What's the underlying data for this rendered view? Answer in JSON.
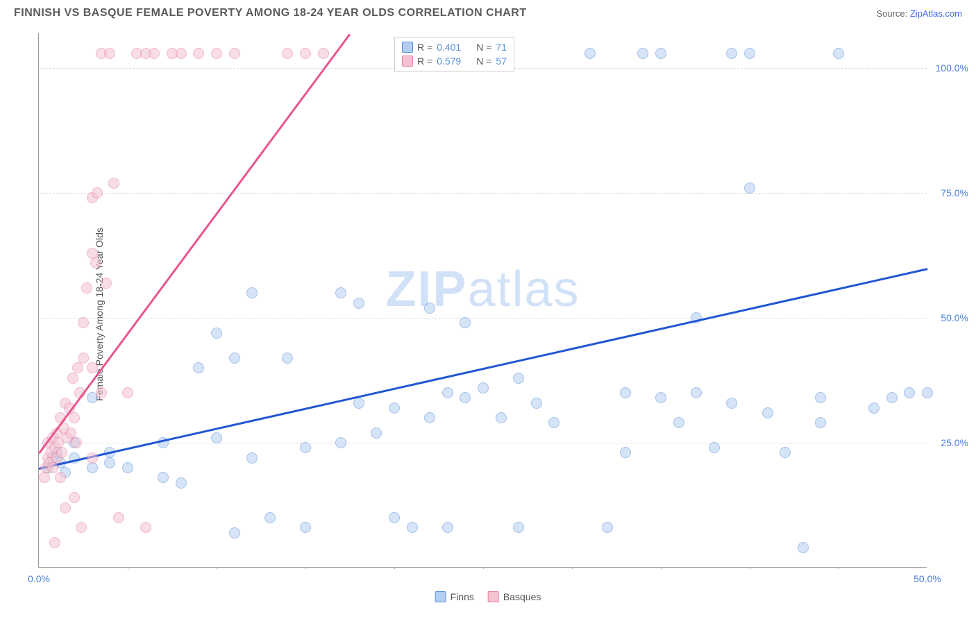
{
  "header": {
    "title": "FINNISH VS BASQUE FEMALE POVERTY AMONG 18-24 YEAR OLDS CORRELATION CHART",
    "source_prefix": "Source: ",
    "source_link": "ZipAtlas.com"
  },
  "ylabel": "Female Poverty Among 18-24 Year Olds",
  "watermark_bold": "ZIP",
  "watermark_light": "atlas",
  "chart": {
    "type": "scatter",
    "xlim": [
      0,
      50
    ],
    "ylim": [
      0,
      107
    ],
    "x_ticks": [
      0,
      50
    ],
    "x_tick_labels": [
      "0.0%",
      "50.0%"
    ],
    "x_minor_ticks": [
      5,
      10,
      15,
      20,
      25,
      30,
      35,
      40,
      45
    ],
    "y_ticks": [
      25,
      50,
      75,
      100
    ],
    "y_tick_labels": [
      "25.0%",
      "50.0%",
      "75.0%",
      "100.0%"
    ],
    "grid_dash_color": "#dddddd",
    "axis_color": "#999999",
    "background_color": "#ffffff",
    "marker_radius": 8,
    "marker_stroke_width": 1,
    "series": [
      {
        "name": "Finns",
        "fill": "#b3cef2",
        "stroke": "#5b8fd9",
        "fill_opacity": 0.55,
        "R": "0.401",
        "N": "71",
        "trend": {
          "x1": 0,
          "y1": 20,
          "x2": 50,
          "y2": 60,
          "color": "#2156d4",
          "width": 2.5
        },
        "points": [
          [
            0.5,
            20
          ],
          [
            0.8,
            22
          ],
          [
            1,
            23
          ],
          [
            1.2,
            21
          ],
          [
            1.5,
            19
          ],
          [
            2,
            25
          ],
          [
            2,
            22
          ],
          [
            3,
            20
          ],
          [
            3,
            34
          ],
          [
            4,
            21
          ],
          [
            4,
            23
          ],
          [
            5,
            20
          ],
          [
            7,
            18
          ],
          [
            7,
            25
          ],
          [
            8,
            17
          ],
          [
            9,
            40
          ],
          [
            10,
            26
          ],
          [
            10,
            47
          ],
          [
            11,
            7
          ],
          [
            11,
            42
          ],
          [
            12,
            22
          ],
          [
            12,
            55
          ],
          [
            13,
            10
          ],
          [
            14,
            42
          ],
          [
            15,
            24
          ],
          [
            15,
            8
          ],
          [
            17,
            55
          ],
          [
            17,
            25
          ],
          [
            18,
            33
          ],
          [
            18,
            53
          ],
          [
            19,
            27
          ],
          [
            20,
            10
          ],
          [
            20,
            32
          ],
          [
            21,
            8
          ],
          [
            22,
            30
          ],
          [
            22,
            52
          ],
          [
            23,
            8
          ],
          [
            23,
            35
          ],
          [
            24,
            34
          ],
          [
            24,
            49
          ],
          [
            25,
            36
          ],
          [
            26,
            30
          ],
          [
            27,
            38
          ],
          [
            27,
            8
          ],
          [
            28,
            33
          ],
          [
            29,
            29
          ],
          [
            31,
            103
          ],
          [
            32,
            8
          ],
          [
            33,
            35
          ],
          [
            33,
            23
          ],
          [
            34,
            103
          ],
          [
            35,
            34
          ],
          [
            35,
            103
          ],
          [
            36,
            29
          ],
          [
            37,
            35
          ],
          [
            37,
            50
          ],
          [
            38,
            24
          ],
          [
            39,
            33
          ],
          [
            39,
            103
          ],
          [
            40,
            76
          ],
          [
            40,
            103
          ],
          [
            41,
            31
          ],
          [
            42,
            23
          ],
          [
            43,
            4
          ],
          [
            44,
            29
          ],
          [
            44,
            34
          ],
          [
            45,
            103
          ],
          [
            47,
            32
          ],
          [
            48,
            34
          ],
          [
            49,
            35
          ],
          [
            50,
            35
          ]
        ]
      },
      {
        "name": "Basques",
        "fill": "#f4c2d0",
        "stroke": "#e87fa5",
        "fill_opacity": 0.55,
        "R": "0.579",
        "N": "57",
        "trend": {
          "x1": 0,
          "y1": 23,
          "x2": 17.5,
          "y2": 107,
          "color": "#e85590",
          "width": 2.5
        },
        "points": [
          [
            0.3,
            18
          ],
          [
            0.4,
            20
          ],
          [
            0.5,
            22
          ],
          [
            0.5,
            25
          ],
          [
            0.6,
            21
          ],
          [
            0.7,
            23
          ],
          [
            0.8,
            20
          ],
          [
            0.8,
            26
          ],
          [
            0.9,
            24
          ],
          [
            0.9,
            5
          ],
          [
            1,
            22
          ],
          [
            1,
            27
          ],
          [
            1.1,
            25
          ],
          [
            1.2,
            30
          ],
          [
            1.2,
            18
          ],
          [
            1.3,
            23
          ],
          [
            1.4,
            28
          ],
          [
            1.5,
            33
          ],
          [
            1.5,
            12
          ],
          [
            1.6,
            26
          ],
          [
            1.7,
            32
          ],
          [
            1.8,
            27
          ],
          [
            1.9,
            38
          ],
          [
            2,
            30
          ],
          [
            2,
            14
          ],
          [
            2.1,
            25
          ],
          [
            2.2,
            40
          ],
          [
            2.3,
            35
          ],
          [
            2.4,
            8
          ],
          [
            2.5,
            42
          ],
          [
            2.5,
            49
          ],
          [
            2.7,
            56
          ],
          [
            3,
            40
          ],
          [
            3,
            63
          ],
          [
            3,
            74
          ],
          [
            3.2,
            61
          ],
          [
            3.3,
            75
          ],
          [
            3.5,
            103
          ],
          [
            3.5,
            35
          ],
          [
            3.8,
            57
          ],
          [
            4,
            103
          ],
          [
            4.2,
            77
          ],
          [
            4.5,
            10
          ],
          [
            5,
            35
          ],
          [
            5.5,
            103
          ],
          [
            6,
            103
          ],
          [
            6,
            8
          ],
          [
            6.5,
            103
          ],
          [
            7.5,
            103
          ],
          [
            8,
            103
          ],
          [
            9,
            103
          ],
          [
            10,
            103
          ],
          [
            11,
            103
          ],
          [
            14,
            103
          ],
          [
            15,
            103
          ],
          [
            16,
            103
          ],
          [
            3,
            22
          ]
        ]
      }
    ]
  },
  "stats_legend": {
    "r_label": "R =",
    "n_label": "N ="
  },
  "bottom_legend": {
    "items": [
      "Finns",
      "Basques"
    ]
  }
}
